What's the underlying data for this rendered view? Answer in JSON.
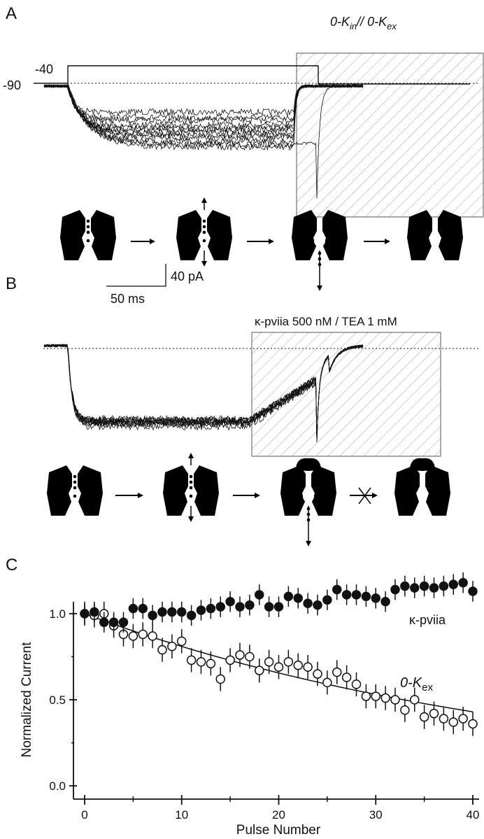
{
  "panelA": {
    "label": "A",
    "condition_title": "0-K",
    "condition_sub_in": "in",
    "condition_mid": "// 0-K",
    "condition_sub_ex": "ex",
    "holding_label": "-90",
    "step_label": "-40"
  },
  "panelB": {
    "label": "B",
    "scale_current": "40 pA",
    "scale_time": "50 ms",
    "condition_title": "κ-pviia 500 nM / TEA 1 mM"
  },
  "colors": {
    "ink": "#111111",
    "hatch": "#888888",
    "background": "#ffffff"
  },
  "chart_data": {
    "type": "scatter",
    "panel_label": "C",
    "xlabel": "Pulse Number",
    "ylabel": "Normalized Current",
    "xlim": [
      -2,
      41
    ],
    "ylim": [
      0,
      1.25
    ],
    "xticks": [
      0,
      10,
      20,
      30,
      40
    ],
    "yticks": [
      "0.0",
      "0.5",
      "1.0"
    ],
    "grid": false,
    "series": [
      {
        "name": "κ-pviia",
        "marker": "filled-circle",
        "x": [
          0,
          1,
          2,
          3,
          4,
          5,
          6,
          7,
          8,
          9,
          10,
          11,
          12,
          13,
          14,
          15,
          16,
          17,
          18,
          19,
          20,
          21,
          22,
          23,
          24,
          25,
          26,
          27,
          28,
          29,
          30,
          31,
          32,
          33,
          34,
          35,
          36,
          37,
          38,
          39,
          40
        ],
        "values": [
          1.0,
          1.01,
          0.95,
          0.95,
          0.95,
          1.03,
          1.03,
          0.99,
          1.01,
          1.01,
          1.01,
          0.99,
          1.02,
          1.03,
          1.04,
          1.07,
          1.04,
          1.05,
          1.11,
          1.04,
          1.04,
          1.1,
          1.09,
          1.06,
          1.05,
          1.08,
          1.14,
          1.11,
          1.11,
          1.1,
          1.09,
          1.07,
          1.14,
          1.16,
          1.15,
          1.16,
          1.15,
          1.16,
          1.17,
          1.18,
          1.13
        ],
        "error": 0.06
      },
      {
        "name": "0-K",
        "name_sub": "ex",
        "marker": "open-circle",
        "x": [
          0,
          1,
          2,
          3,
          4,
          5,
          6,
          7,
          8,
          9,
          10,
          11,
          12,
          13,
          14,
          15,
          16,
          17,
          18,
          19,
          20,
          21,
          22,
          23,
          24,
          25,
          26,
          27,
          28,
          29,
          30,
          31,
          32,
          33,
          34,
          35,
          36,
          37,
          38,
          39,
          40
        ],
        "values": [
          1.0,
          0.99,
          1.0,
          0.93,
          0.88,
          0.87,
          0.88,
          0.87,
          0.79,
          0.81,
          0.84,
          0.73,
          0.72,
          0.71,
          0.62,
          0.73,
          0.76,
          0.75,
          0.67,
          0.72,
          0.69,
          0.72,
          0.7,
          0.69,
          0.65,
          0.6,
          0.66,
          0.63,
          0.59,
          0.52,
          0.52,
          0.51,
          0.5,
          0.44,
          0.5,
          0.4,
          0.42,
          0.39,
          0.37,
          0.39,
          0.36
        ],
        "error": 0.07,
        "fit": {
          "type": "exponential",
          "x": [
            0,
            40
          ],
          "y": [
            1.0,
            0.43
          ]
        }
      }
    ]
  }
}
